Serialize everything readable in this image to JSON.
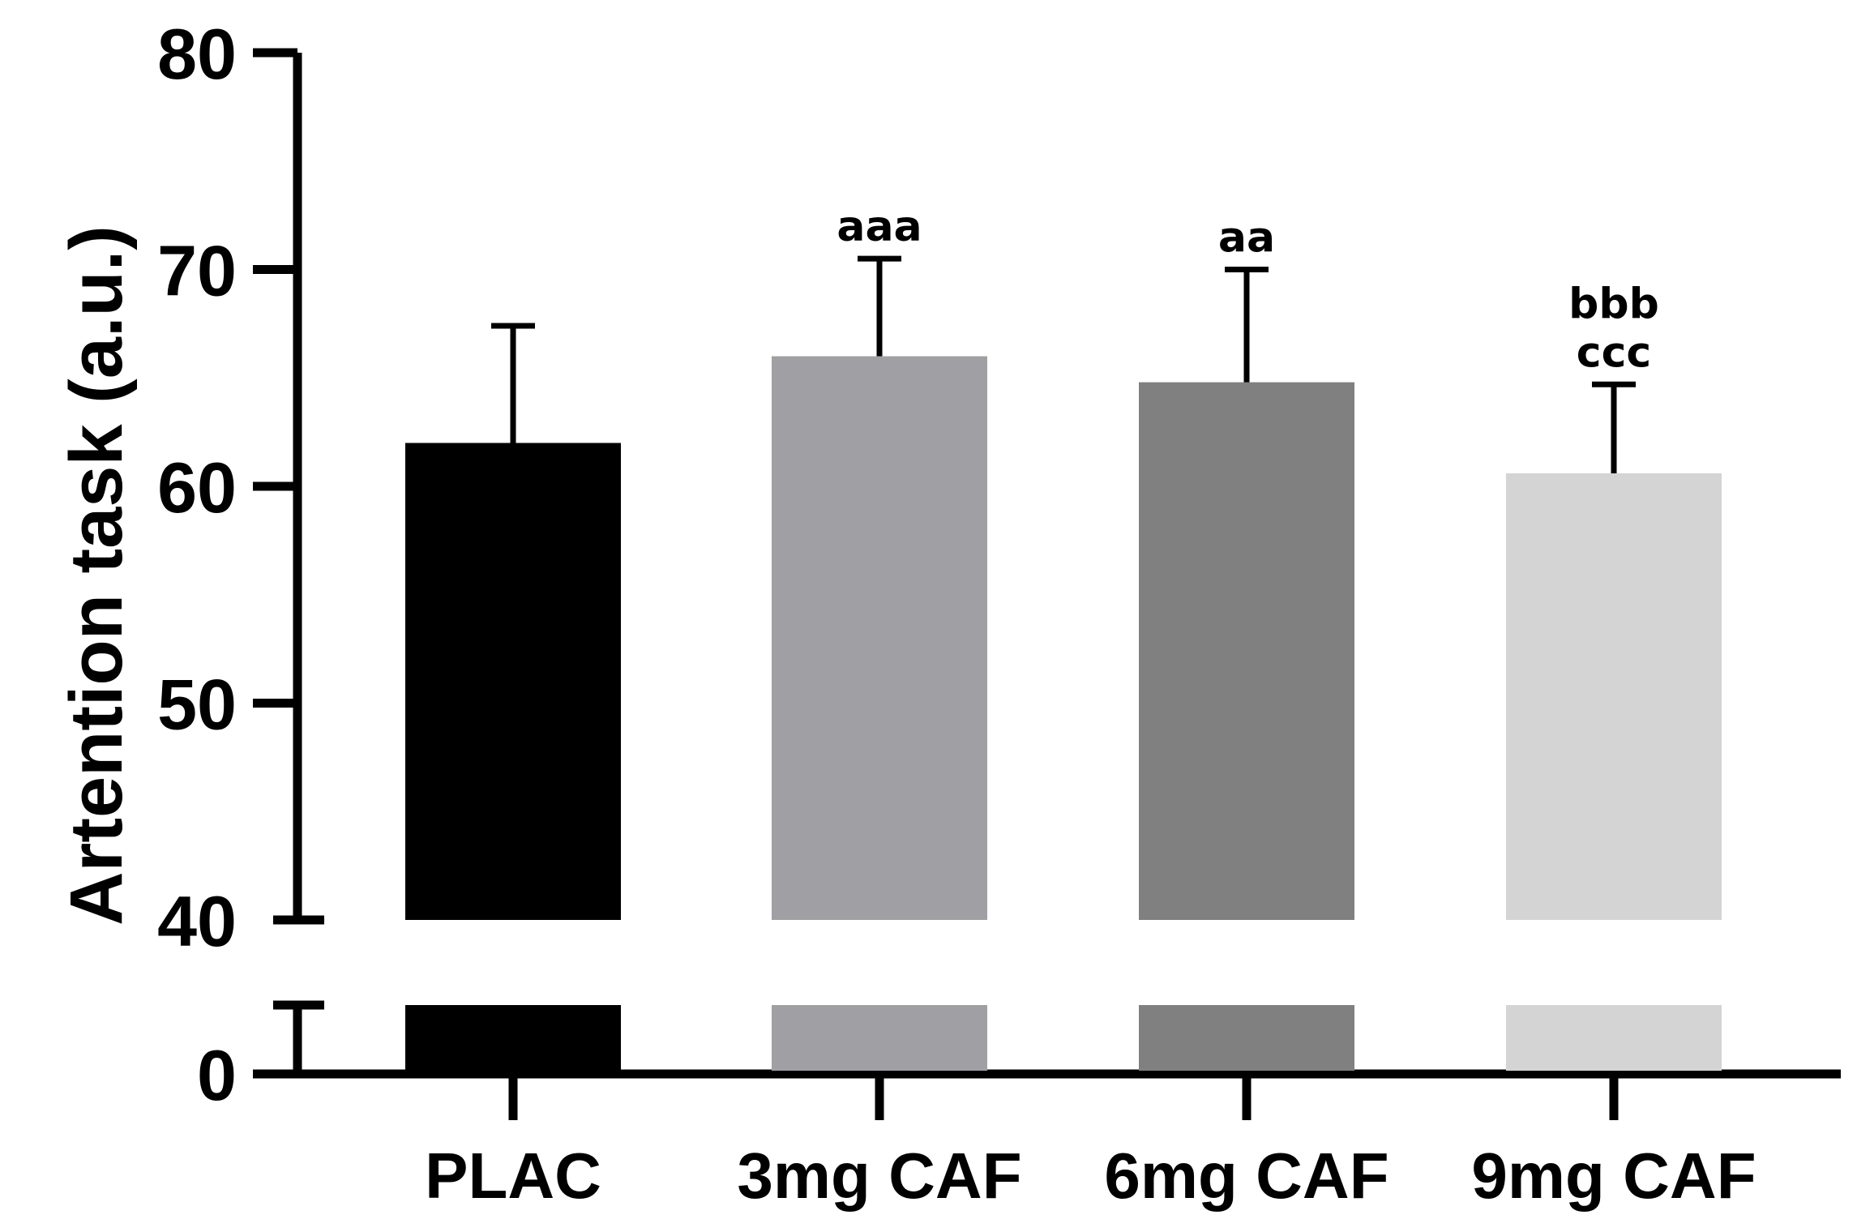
{
  "chart_data": {
    "type": "bar",
    "title": "",
    "xlabel": "",
    "ylabel": "Artention task (a.u.)",
    "categories": [
      "PLAC",
      "3mg CAF",
      "6mg CAF",
      "9mg CAF"
    ],
    "values": [
      62.0,
      66.0,
      64.8,
      60.6
    ],
    "errors": [
      5.4,
      4.5,
      5.2,
      4.1
    ],
    "colors": [
      "#000000",
      "#a0a0a4",
      "#808080",
      "#d4d4d4"
    ],
    "annotations": [
      [],
      [
        "aaa"
      ],
      [
        "aa"
      ],
      [
        "bbb",
        "ccc"
      ]
    ],
    "yticks": [
      "0",
      "40",
      "50",
      "60",
      "70",
      "80"
    ],
    "ylim_upper": [
      40,
      80
    ],
    "axis_break": [
      0,
      40
    ],
    "grid": false
  }
}
